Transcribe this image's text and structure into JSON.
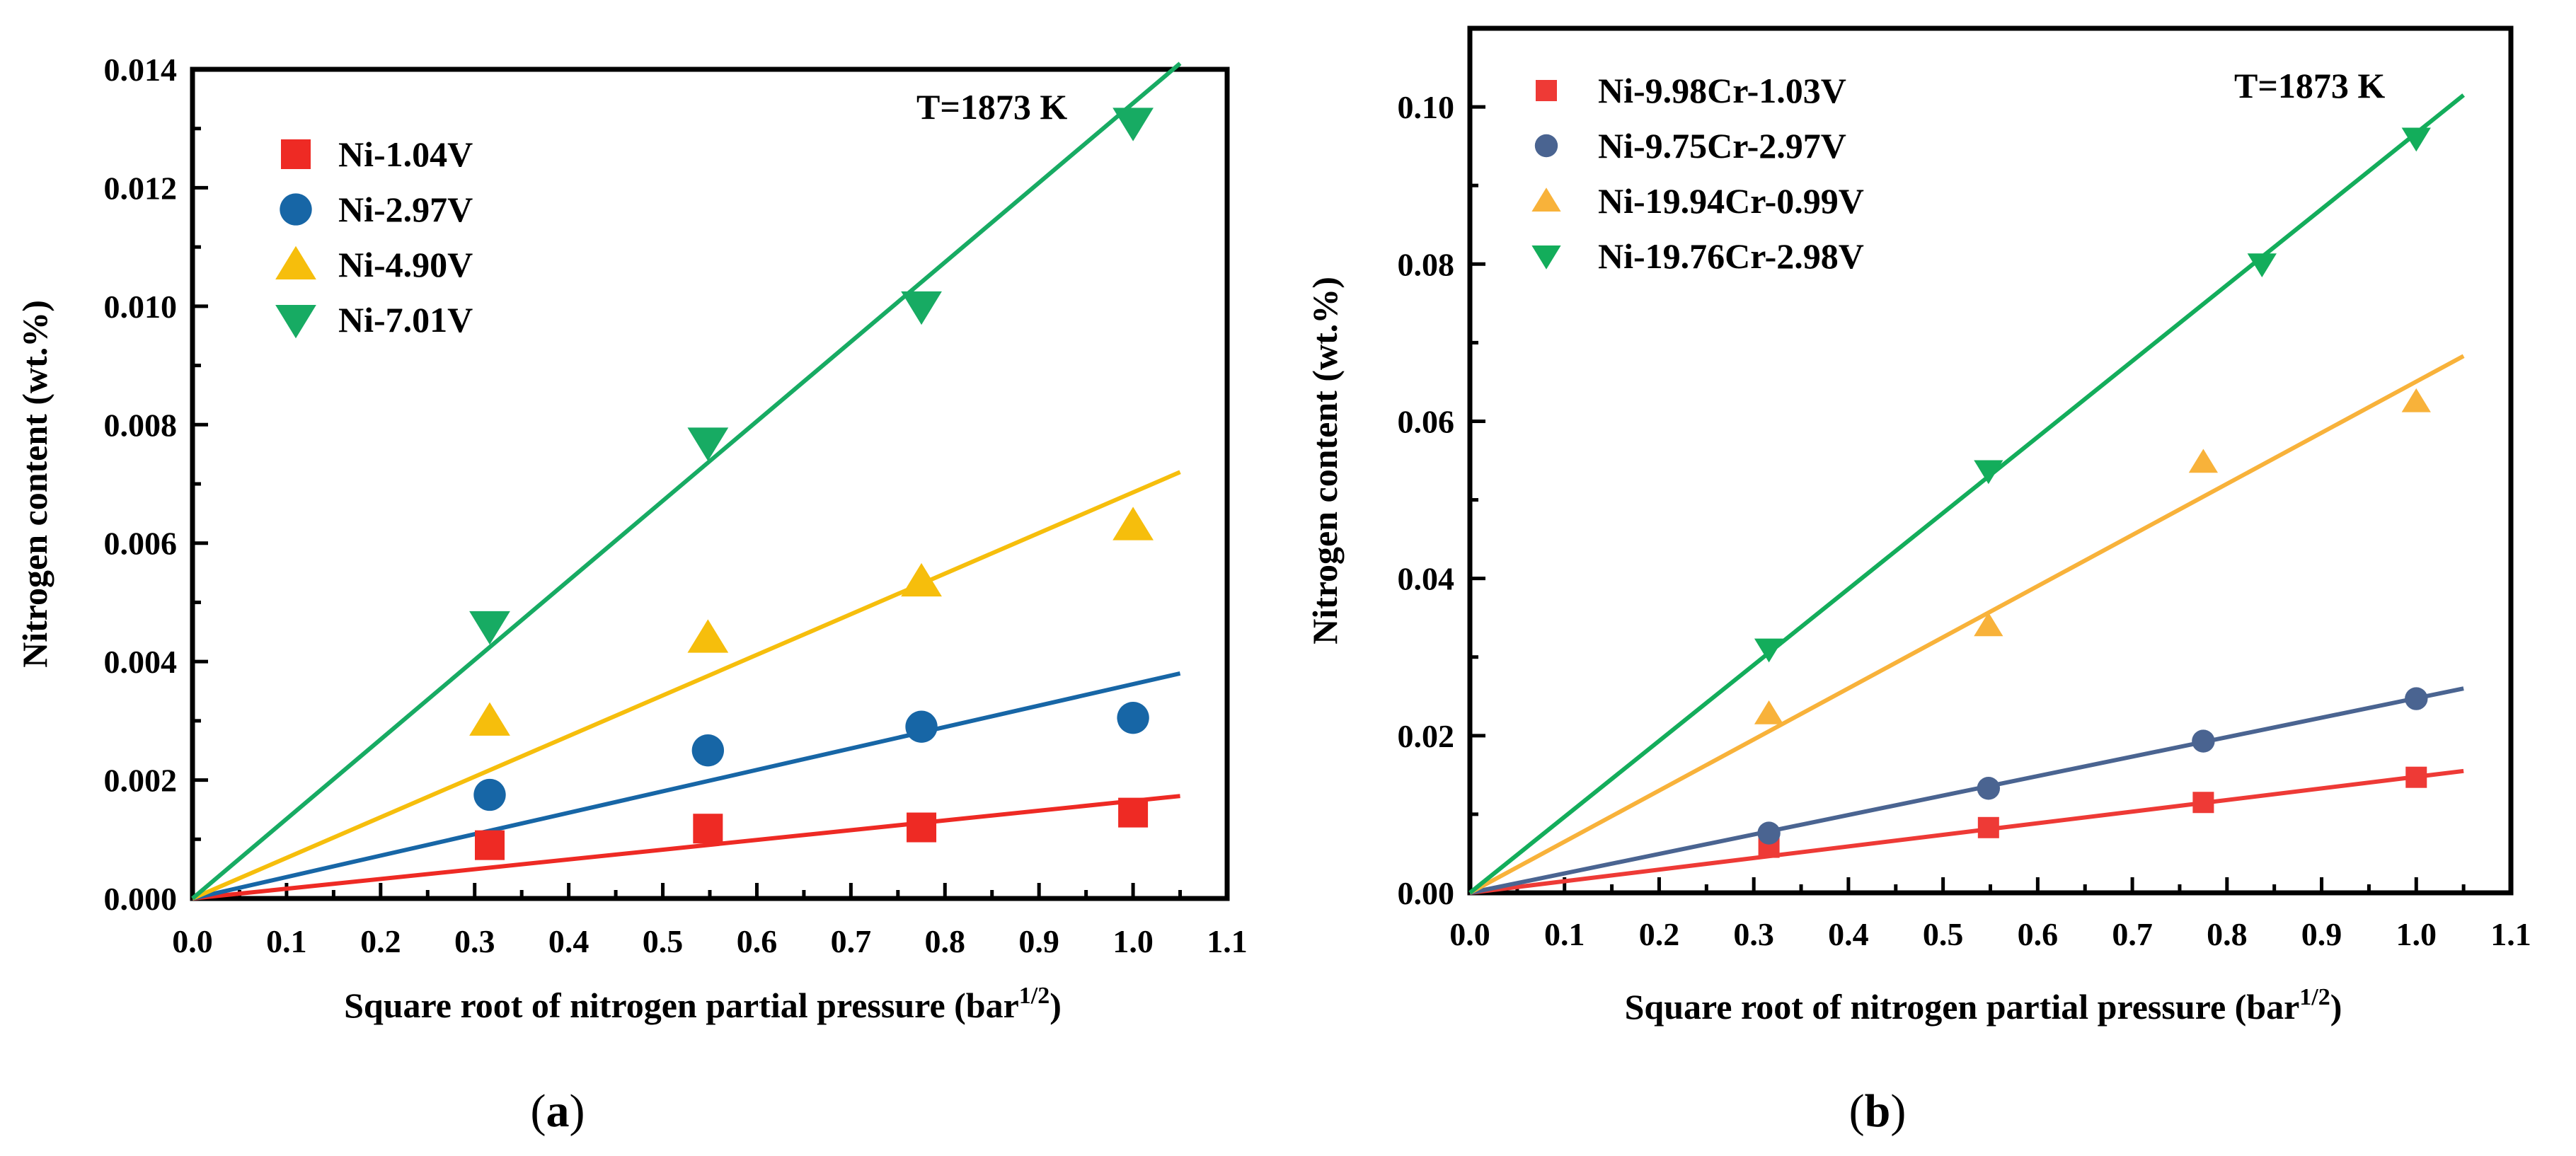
{
  "chart_data": [
    {
      "type": "scatter",
      "panel_label": "a",
      "title": "",
      "annotation": "T=1873 K",
      "xlabel": "Square root of nitrogen partial pressure",
      "xlabel_unit_base": "(bar",
      "xlabel_unit_exp": "1/2",
      "xlabel_unit_end": ")",
      "ylabel": "Nitrogen content (wt.%)",
      "xlim": [
        0.0,
        1.1
      ],
      "ylim": [
        0.0,
        0.014
      ],
      "xticks": [
        "0.0",
        "0.1",
        "0.2",
        "0.3",
        "0.4",
        "0.5",
        "0.6",
        "0.7",
        "0.8",
        "0.9",
        "1.0",
        "1.1"
      ],
      "yticks": [
        "0.000",
        "0.002",
        "0.004",
        "0.006",
        "0.008",
        "0.010",
        "0.012",
        "0.014"
      ],
      "legend_position": "top-left",
      "series": [
        {
          "name": "Ni-1.04V",
          "color": "#ee2a24",
          "marker": "square",
          "x": [
            0.316,
            0.548,
            0.775,
            1.0
          ],
          "y": [
            0.0009,
            0.00118,
            0.0012,
            0.00145
          ],
          "fit": {
            "x": [
              0.0,
              1.05
            ],
            "y": [
              0.0,
              0.00173
            ]
          }
        },
        {
          "name": "Ni-2.97V",
          "color": "#1766a6",
          "marker": "circle",
          "x": [
            0.316,
            0.548,
            0.775,
            1.0
          ],
          "y": [
            0.00175,
            0.0025,
            0.0029,
            0.00305
          ],
          "fit": {
            "x": [
              0.0,
              1.05
            ],
            "y": [
              0.0,
              0.0038
            ]
          }
        },
        {
          "name": "Ni-4.90V",
          "color": "#f6be0c",
          "marker": "triangle-up",
          "x": [
            0.316,
            0.548,
            0.775,
            1.0
          ],
          "y": [
            0.003,
            0.0044,
            0.00535,
            0.0063
          ],
          "fit": {
            "x": [
              0.0,
              1.05
            ],
            "y": [
              0.0,
              0.0072
            ]
          }
        },
        {
          "name": "Ni-7.01V",
          "color": "#17ab63",
          "marker": "triangle-down",
          "x": [
            0.316,
            0.548,
            0.775,
            1.0
          ],
          "y": [
            0.0046,
            0.0077,
            0.01,
            0.0131
          ],
          "fit": {
            "x": [
              0.0,
              1.05
            ],
            "y": [
              0.0,
              0.0141
            ]
          }
        }
      ]
    },
    {
      "type": "scatter",
      "panel_label": "b",
      "title": "",
      "annotation": "T=1873 K",
      "xlabel": "Square root of nitrogen partial pressure",
      "xlabel_unit_base": "(bar",
      "xlabel_unit_exp": "1/2",
      "xlabel_unit_end": ")",
      "ylabel": "Nitrogen content (wt.%)",
      "xlim": [
        0.0,
        1.1
      ],
      "ylim": [
        0.0,
        0.11
      ],
      "xticks": [
        "0.0",
        "0.1",
        "0.2",
        "0.3",
        "0.4",
        "0.5",
        "0.6",
        "0.7",
        "0.8",
        "0.9",
        "1.0",
        "1.1"
      ],
      "yticks": [
        "0.00",
        "0.02",
        "0.04",
        "0.06",
        "0.08",
        "0.10"
      ],
      "legend_position": "top-left",
      "series": [
        {
          "name": "Ni-9.98Cr-1.03V",
          "color": "#ee3a36",
          "marker": "square",
          "x": [
            0.316,
            0.548,
            0.775,
            1.0
          ],
          "y": [
            0.0058,
            0.0083,
            0.0115,
            0.0147
          ],
          "fit": {
            "x": [
              0.0,
              1.05
            ],
            "y": [
              0.0,
              0.0155
            ]
          }
        },
        {
          "name": "Ni-9.75Cr-2.97V",
          "color": "#4a6491",
          "marker": "circle",
          "x": [
            0.316,
            0.548,
            0.775,
            1.0
          ],
          "y": [
            0.0076,
            0.0133,
            0.0193,
            0.0247
          ],
          "fit": {
            "x": [
              0.0,
              1.05
            ],
            "y": [
              0.0,
              0.026
            ]
          }
        },
        {
          "name": "Ni-19.94Cr-0.99V",
          "color": "#f8b23a",
          "marker": "triangle-up",
          "x": [
            0.316,
            0.548,
            0.775,
            1.0
          ],
          "y": [
            0.0228,
            0.034,
            0.0548,
            0.0625
          ],
          "fit": {
            "x": [
              0.0,
              1.05
            ],
            "y": [
              0.0,
              0.0683
            ]
          }
        },
        {
          "name": "Ni-19.76Cr-2.98V",
          "color": "#13ad5b",
          "marker": "triangle-down",
          "x": [
            0.316,
            0.548,
            0.837,
            1.0
          ],
          "y": [
            0.031,
            0.0537,
            0.08,
            0.096
          ],
          "fit": {
            "x": [
              0.0,
              1.05
            ],
            "y": [
              0.0,
              0.1015
            ]
          }
        }
      ]
    }
  ]
}
